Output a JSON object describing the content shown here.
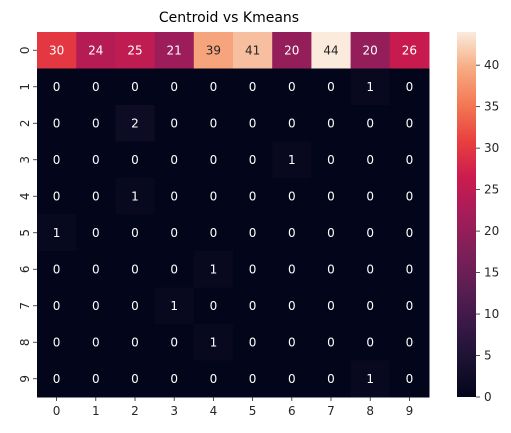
{
  "chart_data": {
    "type": "heatmap",
    "title": "Centroid vs Kmeans",
    "xlabel": "",
    "ylabel": "",
    "x_categories": [
      "0",
      "1",
      "2",
      "3",
      "4",
      "5",
      "6",
      "7",
      "8",
      "9"
    ],
    "y_categories": [
      "0",
      "1",
      "2",
      "3",
      "4",
      "5",
      "6",
      "7",
      "8",
      "9"
    ],
    "values": [
      [
        30,
        24,
        25,
        21,
        39,
        41,
        20,
        44,
        20,
        26
      ],
      [
        0,
        0,
        0,
        0,
        0,
        0,
        0,
        0,
        1,
        0
      ],
      [
        0,
        0,
        2,
        0,
        0,
        0,
        0,
        0,
        0,
        0
      ],
      [
        0,
        0,
        0,
        0,
        0,
        0,
        1,
        0,
        0,
        0
      ],
      [
        0,
        0,
        1,
        0,
        0,
        0,
        0,
        0,
        0,
        0
      ],
      [
        1,
        0,
        0,
        0,
        0,
        0,
        0,
        0,
        0,
        0
      ],
      [
        0,
        0,
        0,
        0,
        1,
        0,
        0,
        0,
        0,
        0
      ],
      [
        0,
        0,
        0,
        1,
        0,
        0,
        0,
        0,
        0,
        0
      ],
      [
        0,
        0,
        0,
        0,
        1,
        0,
        0,
        0,
        0,
        0
      ],
      [
        0,
        0,
        0,
        0,
        0,
        0,
        0,
        0,
        1,
        0
      ]
    ],
    "annotations": true,
    "colormap": "rocket",
    "vmin": 0,
    "vmax": 44,
    "colorbar": {
      "ticks": [
        0,
        5,
        10,
        15,
        20,
        25,
        30,
        35,
        40
      ],
      "placement": "right"
    },
    "grid": false
  }
}
